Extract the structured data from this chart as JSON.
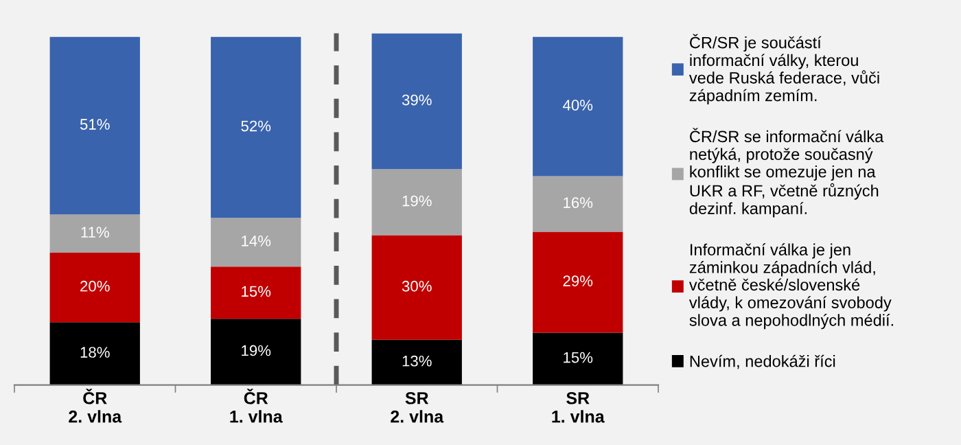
{
  "chart_data": {
    "type": "bar",
    "stacked": true,
    "legend": "right",
    "grid": false,
    "tick_labels": "x",
    "categories": [
      "ČR\n2. vlna",
      "ČR\n1. vlna",
      "SR\n2. vlna",
      "SR\n1. vlna"
    ],
    "series": [
      {
        "name": "Nevím, nedokáži říci",
        "color": "#000000",
        "values": [
          18,
          19,
          13,
          15
        ],
        "value_labels": [
          "18%",
          "19%",
          "13%",
          "15%"
        ]
      },
      {
        "name": "Informační válka je jen\nzáminkou západních vlád,\nvčetně české/slovenské\nvlády, k omezování svobody\nslova a nepohodlných médií.",
        "color": "#c00000",
        "values": [
          20,
          15,
          30,
          29
        ],
        "value_labels": [
          "20%",
          "15%",
          "30%",
          "29%"
        ]
      },
      {
        "name": "ČR/SR se informační válka\nnetýká, protože současný\nkonflikt se omezuje jen na\nUKR a RF, včetně různých\ndezinf. kampaní.",
        "color": "#a6a6a6",
        "values": [
          11,
          14,
          19,
          16
        ],
        "value_labels": [
          "11%",
          "14%",
          "19%",
          "16%"
        ]
      },
      {
        "name": "ČR/SR je součástí\ninformační války, kterou\nvede Ruská federace, vůči\nzápadním zemím.",
        "color": "#3a63ad",
        "values": [
          51,
          52,
          39,
          40
        ],
        "value_labels": [
          "51%",
          "52%",
          "39%",
          "40%"
        ]
      }
    ]
  }
}
